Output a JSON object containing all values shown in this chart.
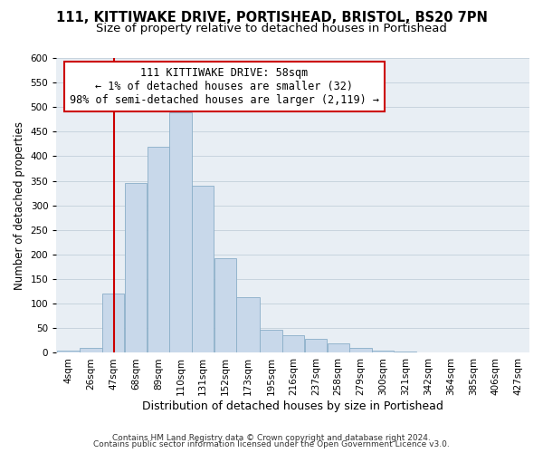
{
  "title1": "111, KITTIWAKE DRIVE, PORTISHEAD, BRISTOL, BS20 7PN",
  "title2": "Size of property relative to detached houses in Portishead",
  "xlabel": "Distribution of detached houses by size in Portishead",
  "ylabel": "Number of detached properties",
  "bar_labels": [
    "4sqm",
    "26sqm",
    "47sqm",
    "68sqm",
    "89sqm",
    "110sqm",
    "131sqm",
    "152sqm",
    "173sqm",
    "195sqm",
    "216sqm",
    "237sqm",
    "258sqm",
    "279sqm",
    "300sqm",
    "321sqm",
    "342sqm",
    "364sqm",
    "385sqm",
    "406sqm",
    "427sqm"
  ],
  "bar_heights": [
    5,
    10,
    120,
    345,
    420,
    490,
    340,
    193,
    113,
    47,
    35,
    28,
    20,
    10,
    5,
    2,
    1,
    1,
    0,
    0,
    0
  ],
  "bar_color": "#c8d8ea",
  "bar_edge_color": "#8aaec8",
  "grid_color": "#c8d4de",
  "bg_color": "#e8eef4",
  "property_line_x": 58,
  "bin_edges": [
    4,
    26,
    47,
    68,
    89,
    110,
    131,
    152,
    173,
    195,
    216,
    237,
    258,
    279,
    300,
    321,
    342,
    364,
    385,
    406,
    427,
    448
  ],
  "annotation_text": "111 KITTIWAKE DRIVE: 58sqm\n← 1% of detached houses are smaller (32)\n98% of semi-detached houses are larger (2,119) →",
  "box_color": "#ffffff",
  "box_edge_color": "#cc0000",
  "property_line_color": "#cc0000",
  "ylim": [
    0,
    600
  ],
  "yticks": [
    0,
    50,
    100,
    150,
    200,
    250,
    300,
    350,
    400,
    450,
    500,
    550,
    600
  ],
  "footnote1": "Contains HM Land Registry data © Crown copyright and database right 2024.",
  "footnote2": "Contains public sector information licensed under the Open Government Licence v3.0.",
  "title1_fontsize": 10.5,
  "title2_fontsize": 9.5,
  "xlabel_fontsize": 9,
  "ylabel_fontsize": 8.5,
  "tick_fontsize": 7.5,
  "annot_fontsize": 8.5,
  "footnote_fontsize": 6.5
}
